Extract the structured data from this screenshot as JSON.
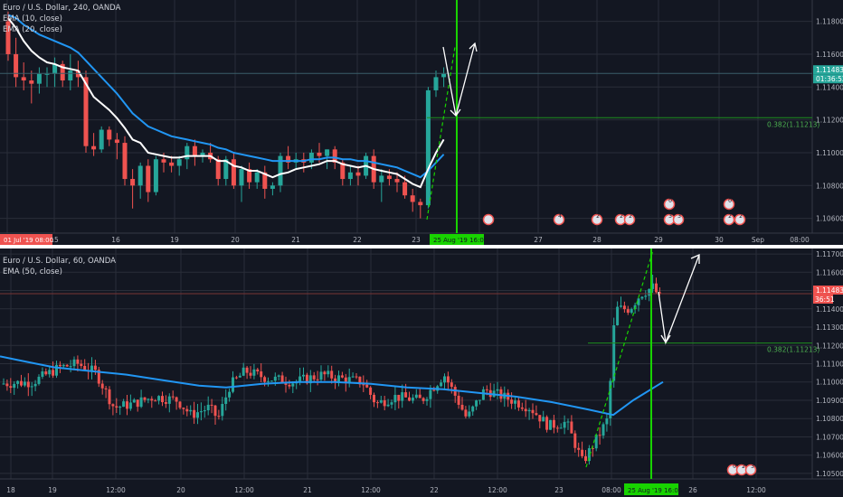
{
  "colors": {
    "background": "#131722",
    "grid": "#2a2e39",
    "bull": "#26a69a",
    "bear": "#ef5350",
    "ema_fast": "#ffffff",
    "ema_slow": "#2196f3",
    "green_line": "#18d300",
    "fib_line": "#1e8f1e",
    "price_line": "#7a3434",
    "axis_text": "#b2b5be",
    "price_badge": "#ef5350",
    "fib_text": "#4caf50"
  },
  "chart_data": [
    {
      "type": "candlestick",
      "pane": "top",
      "title": "Euro / U.S. Dollar, 240, OANDA",
      "legend": [
        "EMA (10, close)",
        "EMA (20, close)"
      ],
      "ylim": [
        1.1051,
        1.1193
      ],
      "yticks": [
        "1.11200",
        "1.11000",
        "1.10800",
        "1.10600"
      ],
      "ytick_values": [
        1.112,
        1.11,
        1.108,
        1.106
      ],
      "ytick_labels_top": [
        "1.11600"
      ],
      "ytick_top_values": [
        1.116
      ],
      "extra_ytick": "1.11800",
      "extra_ytick_value": 1.118,
      "extra_ytick2": "1.11400",
      "extra_ytick2_value": 1.114,
      "xticks": [
        "15",
        "16",
        "19",
        "20",
        "21",
        "22",
        "23",
        "27",
        "28",
        "29",
        "30",
        "Sep",
        "08:00"
      ],
      "x_label_left": "01 Jul '19",
      "x_label_left_time": "08:00",
      "x_highlight": "25 Aug '19",
      "x_highlight_time": "16:00",
      "last_price": "1.11483",
      "countdown": "01:36:52",
      "fib_label": "0.382(1.11213)",
      "fib_value": 1.11213,
      "candles": [
        [
          1.118,
          1.1186,
          1.1156,
          1.116
        ],
        [
          1.116,
          1.117,
          1.114,
          1.1146
        ],
        [
          1.1146,
          1.1155,
          1.1138,
          1.1144
        ],
        [
          1.1144,
          1.115,
          1.113,
          1.1142
        ],
        [
          1.1142,
          1.1152,
          1.1136,
          1.1148
        ],
        [
          1.1148,
          1.1152,
          1.114,
          1.1148
        ],
        [
          1.1148,
          1.1158,
          1.114,
          1.1154
        ],
        [
          1.1154,
          1.1156,
          1.114,
          1.1144
        ],
        [
          1.1144,
          1.116,
          1.1138,
          1.115
        ],
        [
          1.115,
          1.1156,
          1.114,
          1.1146
        ],
        [
          1.1146,
          1.115,
          1.11,
          1.1104
        ],
        [
          1.1104,
          1.1112,
          1.1098,
          1.1102
        ],
        [
          1.1102,
          1.1116,
          1.11,
          1.1114
        ],
        [
          1.1114,
          1.1116,
          1.1104,
          1.1108
        ],
        [
          1.1108,
          1.1112,
          1.1096,
          1.1106
        ],
        [
          1.1106,
          1.111,
          1.108,
          1.1084
        ],
        [
          1.1084,
          1.109,
          1.1066,
          1.108
        ],
        [
          1.108,
          1.1094,
          1.1072,
          1.1092
        ],
        [
          1.1092,
          1.1096,
          1.107,
          1.1076
        ],
        [
          1.1076,
          1.1098,
          1.1074,
          1.1096
        ],
        [
          1.1096,
          1.11,
          1.1088,
          1.1094
        ],
        [
          1.1094,
          1.1098,
          1.1088,
          1.1092
        ],
        [
          1.1092,
          1.1098,
          1.1086,
          1.1096
        ],
        [
          1.1096,
          1.1106,
          1.109,
          1.1104
        ],
        [
          1.1104,
          1.1108,
          1.1092,
          1.1098
        ],
        [
          1.1098,
          1.1102,
          1.1094,
          1.11
        ],
        [
          1.11,
          1.1106,
          1.1094,
          1.1096
        ],
        [
          1.1096,
          1.1098,
          1.108,
          1.1084
        ],
        [
          1.1084,
          1.1098,
          1.108,
          1.1096
        ],
        [
          1.1096,
          1.11,
          1.1078,
          1.108
        ],
        [
          1.108,
          1.1092,
          1.107,
          1.109
        ],
        [
          1.109,
          1.1094,
          1.1078,
          1.1082
        ],
        [
          1.1082,
          1.109,
          1.1078,
          1.1088
        ],
        [
          1.1088,
          1.1092,
          1.1072,
          1.1078
        ],
        [
          1.1078,
          1.1082,
          1.1074,
          1.108
        ],
        [
          1.108,
          1.11,
          1.1076,
          1.1098
        ],
        [
          1.1098,
          1.1104,
          1.109,
          1.1094
        ],
        [
          1.1094,
          1.11,
          1.109,
          1.1096
        ],
        [
          1.1096,
          1.11,
          1.1088,
          1.1094
        ],
        [
          1.1094,
          1.1102,
          1.109,
          1.11
        ],
        [
          1.11,
          1.1106,
          1.1094,
          1.1098
        ],
        [
          1.1098,
          1.1102,
          1.109,
          1.1102
        ],
        [
          1.1102,
          1.1104,
          1.109,
          1.1094
        ],
        [
          1.1094,
          1.1096,
          1.108,
          1.1084
        ],
        [
          1.1084,
          1.1092,
          1.108,
          1.1088
        ],
        [
          1.1088,
          1.1092,
          1.108,
          1.1086
        ],
        [
          1.1086,
          1.11,
          1.1084,
          1.1098
        ],
        [
          1.1098,
          1.1102,
          1.1078,
          1.1082
        ],
        [
          1.1082,
          1.109,
          1.107,
          1.1086
        ],
        [
          1.1086,
          1.109,
          1.108,
          1.1084
        ],
        [
          1.1084,
          1.1088,
          1.1076,
          1.1082
        ],
        [
          1.1082,
          1.1086,
          1.1072,
          1.1074
        ],
        [
          1.1074,
          1.1078,
          1.1064,
          1.107
        ],
        [
          1.107,
          1.1072,
          1.106,
          1.1068
        ],
        [
          1.1068,
          1.114,
          1.1066,
          1.1138
        ],
        [
          1.1138,
          1.115,
          1.1134,
          1.1146
        ],
        [
          1.1146,
          1.1152,
          1.114,
          1.1148
        ]
      ],
      "ema_fast": [
        1.1182,
        1.1176,
        1.1168,
        1.1162,
        1.1158,
        1.1155,
        1.1154,
        1.1152,
        1.1151,
        1.115,
        1.1142,
        1.1134,
        1.113,
        1.1126,
        1.1121,
        1.1115,
        1.1108,
        1.1106,
        1.11,
        1.1099,
        1.1098,
        1.1097,
        1.1097,
        1.1098,
        1.1098,
        1.1098,
        1.1098,
        1.1095,
        1.1095,
        1.1092,
        1.1091,
        1.1089,
        1.1089,
        1.1087,
        1.1085,
        1.1087,
        1.1088,
        1.109,
        1.1091,
        1.1092,
        1.1093,
        1.1095,
        1.1095,
        1.1093,
        1.1092,
        1.1091,
        1.1092,
        1.109,
        1.1089,
        1.1088,
        1.1087,
        1.1084,
        1.1081,
        1.1079,
        1.109,
        1.11,
        1.1108
      ],
      "ema_slow": [
        1.1184,
        1.1182,
        1.1178,
        1.1175,
        1.1172,
        1.117,
        1.1168,
        1.1166,
        1.1164,
        1.1161,
        1.1156,
        1.1151,
        1.1146,
        1.1141,
        1.1136,
        1.113,
        1.1124,
        1.112,
        1.1116,
        1.1114,
        1.1112,
        1.111,
        1.1109,
        1.1108,
        1.1107,
        1.1106,
        1.1105,
        1.1103,
        1.1102,
        1.11,
        1.1099,
        1.1098,
        1.1097,
        1.1096,
        1.1095,
        1.1095,
        1.1095,
        1.1095,
        1.1095,
        1.1096,
        1.1096,
        1.1097,
        1.1097,
        1.1096,
        1.1096,
        1.1095,
        1.1095,
        1.1094,
        1.1093,
        1.1092,
        1.1091,
        1.1089,
        1.1087,
        1.1085,
        1.1089,
        1.1094,
        1.1099
      ],
      "events_top": [
        "4",
        "2",
        "2",
        "2",
        "0",
        "3",
        "3",
        "0",
        "2",
        "2"
      ]
    },
    {
      "type": "candlestick",
      "pane": "bottom",
      "title": "Euro / U.S. Dollar, 60, OANDA",
      "legend": [
        "EMA (50, close)"
      ],
      "ylim": [
        1.1047,
        1.1173
      ],
      "yticks": [
        "1.11600",
        "1.11300",
        "1.11200",
        "1.11100",
        "1.11000",
        "1.10900",
        "1.10800",
        "1.10700",
        "1.10600",
        "1.10500"
      ],
      "ytick_values": [
        1.116,
        1.113,
        1.112,
        1.111,
        1.11,
        1.109,
        1.108,
        1.107,
        1.106,
        1.105
      ],
      "ytick_extra": [
        "1.11700",
        "1.11400"
      ],
      "ytick_extra_values": [
        1.117,
        1.114
      ],
      "xticks": [
        "18",
        "19",
        "12:00",
        "20",
        "12:00",
        "21",
        "12:00",
        "22",
        "12:00",
        "23",
        "08:00",
        "26",
        "12:00"
      ],
      "x_highlight": "25 Aug '19",
      "x_highlight_time": "16:00",
      "last_price": "1.11483",
      "countdown": "36:51",
      "fib_label": "0.382(1.11213)",
      "fib_value": 1.11213,
      "ema_points": [
        [
          0,
          1.1114
        ],
        [
          30,
          1.1111
        ],
        [
          60,
          1.1108
        ],
        [
          100,
          1.1106
        ],
        [
          140,
          1.1104
        ],
        [
          180,
          1.1101
        ],
        [
          220,
          1.1098
        ],
        [
          250,
          1.1097
        ],
        [
          290,
          1.1099
        ],
        [
          330,
          1.11
        ],
        [
          370,
          1.11
        ],
        [
          410,
          1.1099
        ],
        [
          450,
          1.1097
        ],
        [
          490,
          1.1096
        ],
        [
          530,
          1.1094
        ],
        [
          570,
          1.1092
        ],
        [
          610,
          1.1089
        ],
        [
          650,
          1.1085
        ],
        [
          678,
          1.1082
        ],
        [
          700,
          1.109
        ],
        [
          733,
          1.11
        ]
      ],
      "events_bottom": [
        "0",
        "2",
        "3"
      ]
    }
  ]
}
